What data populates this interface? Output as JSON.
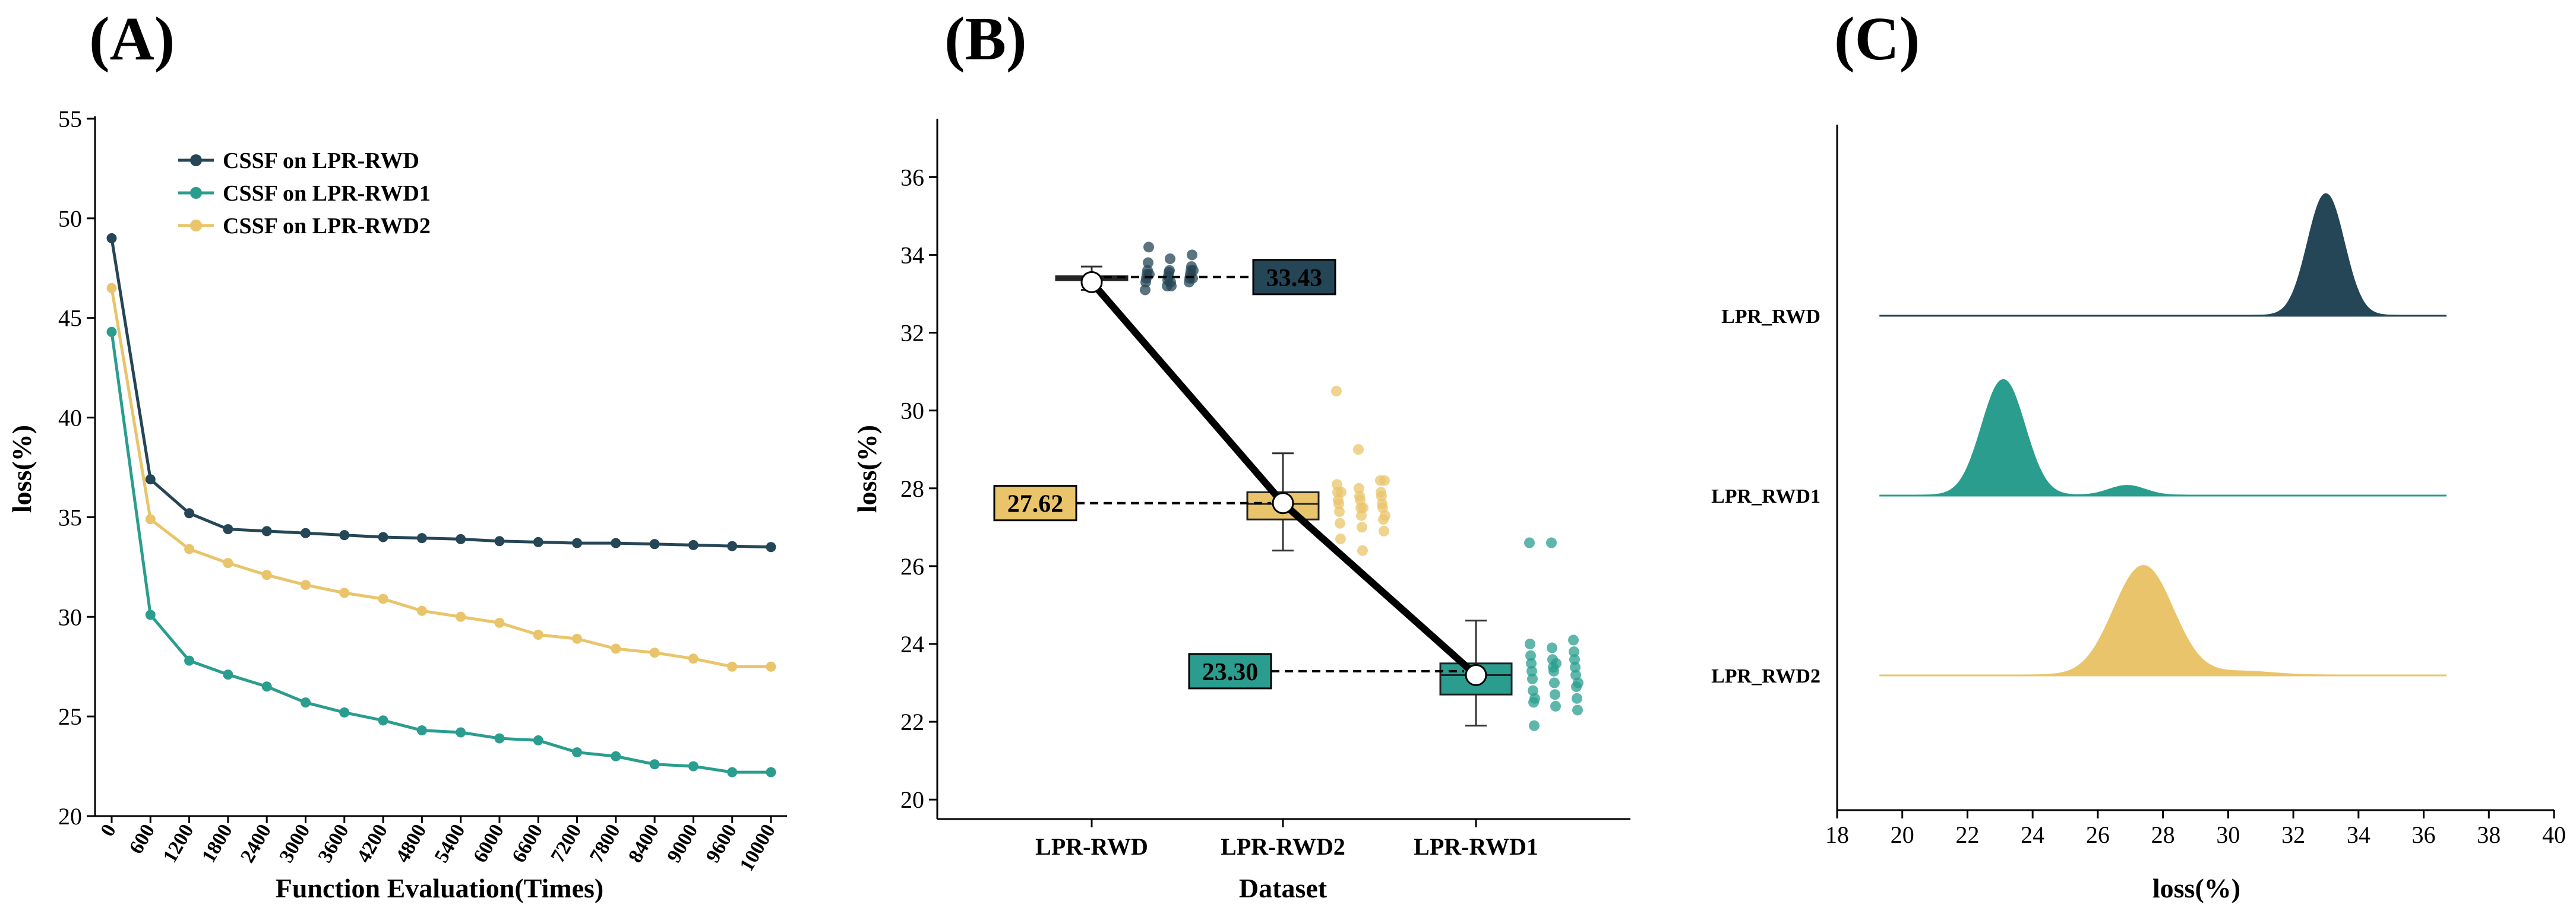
{
  "colors": {
    "lpr_rwd": "#254656",
    "lpr_rwd1": "#2a9d8f",
    "lpr_rwd2": "#e9c46a",
    "axis": "#000000"
  },
  "chart_data": [
    {
      "panel": "(A)",
      "type": "line",
      "xlabel": "Function Evaluation(Times)",
      "ylabel": "loss(%)",
      "ylim": [
        20,
        55
      ],
      "yticks": [
        "20",
        "25",
        "30",
        "35",
        "40",
        "45",
        "50",
        "55"
      ],
      "categories": [
        "0",
        "600",
        "1200",
        "1800",
        "2400",
        "3000",
        "3600",
        "4200",
        "4800",
        "5400",
        "6000",
        "6600",
        "7200",
        "7800",
        "8400",
        "9000",
        "9600",
        "10000"
      ],
      "legend": "top-left",
      "series": [
        {
          "name": "CSSF on LPR-RWD",
          "color": "#254656",
          "values": [
            49.0,
            36.9,
            35.2,
            34.4,
            34.3,
            34.2,
            34.1,
            34.0,
            33.95,
            33.9,
            33.8,
            33.75,
            33.7,
            33.7,
            33.65,
            33.6,
            33.55,
            33.5
          ]
        },
        {
          "name": "CSSF on LPR-RWD1",
          "color": "#2a9d8f",
          "values": [
            44.3,
            30.1,
            27.8,
            27.1,
            26.5,
            25.7,
            25.2,
            24.8,
            24.3,
            24.2,
            23.9,
            23.8,
            23.2,
            23.0,
            22.6,
            22.5,
            22.2,
            22.2
          ]
        },
        {
          "name": "CSSF on LPR-RWD2",
          "color": "#e9c46a",
          "values": [
            46.5,
            34.9,
            33.4,
            32.7,
            32.1,
            31.6,
            31.2,
            30.9,
            30.3,
            30.0,
            29.7,
            29.1,
            28.9,
            28.4,
            28.2,
            27.9,
            27.5,
            27.5
          ]
        }
      ]
    },
    {
      "panel": "(B)",
      "type": "box",
      "xlabel": "Dataset",
      "ylabel": "loss(%)",
      "ylim": [
        19.5,
        37.5
      ],
      "yticks": [
        "20",
        "22",
        "24",
        "26",
        "28",
        "30",
        "32",
        "34",
        "36"
      ],
      "categories": [
        "LPR-RWD",
        "LPR-RWD2",
        "LPR-RWD1"
      ],
      "series": [
        {
          "name": "LPR-RWD",
          "color": "#254656",
          "mean_label": "33.43",
          "mean": 33.43,
          "marker": 33.3,
          "min": 33.1,
          "q1": 33.35,
          "median": 33.4,
          "q3": 33.45,
          "max": 33.7,
          "points": [
            33.1,
            33.2,
            33.3,
            33.3,
            33.35,
            33.4,
            33.4,
            33.45,
            33.5,
            33.5,
            33.55,
            33.6,
            33.6,
            33.6,
            33.7,
            33.8,
            33.9,
            34.0,
            34.2,
            33.3,
            33.4,
            33.5,
            33.2,
            33.6
          ]
        },
        {
          "name": "LPR-RWD2",
          "color": "#e9c46a",
          "mean_label": "27.62",
          "mean": 27.62,
          "marker": 27.62,
          "min": 26.4,
          "q1": 27.2,
          "median": 27.6,
          "q3": 27.9,
          "max": 28.9,
          "points": [
            30.5,
            29.0,
            28.2,
            28.1,
            28.0,
            27.9,
            27.9,
            27.8,
            27.8,
            27.7,
            27.7,
            27.6,
            27.6,
            27.5,
            27.5,
            27.4,
            27.3,
            27.2,
            27.1,
            27.0,
            26.9,
            26.7,
            26.4,
            28.2,
            27.9,
            27.5,
            27.3
          ]
        },
        {
          "name": "LPR-RWD1",
          "color": "#2a9d8f",
          "mean_label": "23.30",
          "mean": 23.3,
          "marker": 23.2,
          "min": 21.9,
          "q1": 22.7,
          "median": 23.2,
          "q3": 23.5,
          "max": 24.6,
          "points": [
            26.6,
            26.6,
            24.1,
            24.0,
            23.9,
            23.8,
            23.7,
            23.6,
            23.6,
            23.5,
            23.4,
            23.4,
            23.3,
            23.3,
            23.2,
            23.1,
            23.0,
            22.9,
            22.8,
            22.7,
            22.6,
            22.5,
            22.4,
            22.3,
            21.9,
            23.5,
            23.0,
            22.6
          ]
        }
      ]
    },
    {
      "panel": "(C)",
      "type": "ridgeline",
      "xlabel": "loss(%)",
      "xlim": [
        18,
        40
      ],
      "xticks": [
        "18",
        "20",
        "22",
        "24",
        "26",
        "28",
        "30",
        "32",
        "34",
        "36",
        "38",
        "40"
      ],
      "series": [
        {
          "name": "LPR_RWD",
          "color": "#254656",
          "x_range": [
            19.3,
            36.7
          ],
          "components": [
            {
              "mu": 33.0,
              "sigma": 0.55,
              "height": 1.0
            }
          ]
        },
        {
          "name": "LPR_RWD1",
          "color": "#2a9d8f",
          "x_range": [
            19.3,
            36.7
          ],
          "components": [
            {
              "mu": 23.1,
              "sigma": 0.65,
              "height": 0.95
            },
            {
              "mu": 26.9,
              "sigma": 0.55,
              "height": 0.08
            }
          ]
        },
        {
          "name": "LPR_RWD2",
          "color": "#e9c46a",
          "x_range": [
            19.3,
            36.7
          ],
          "components": [
            {
              "mu": 27.4,
              "sigma": 0.9,
              "height": 0.9
            },
            {
              "mu": 30.5,
              "sigma": 0.9,
              "height": 0.03
            }
          ]
        }
      ]
    }
  ]
}
